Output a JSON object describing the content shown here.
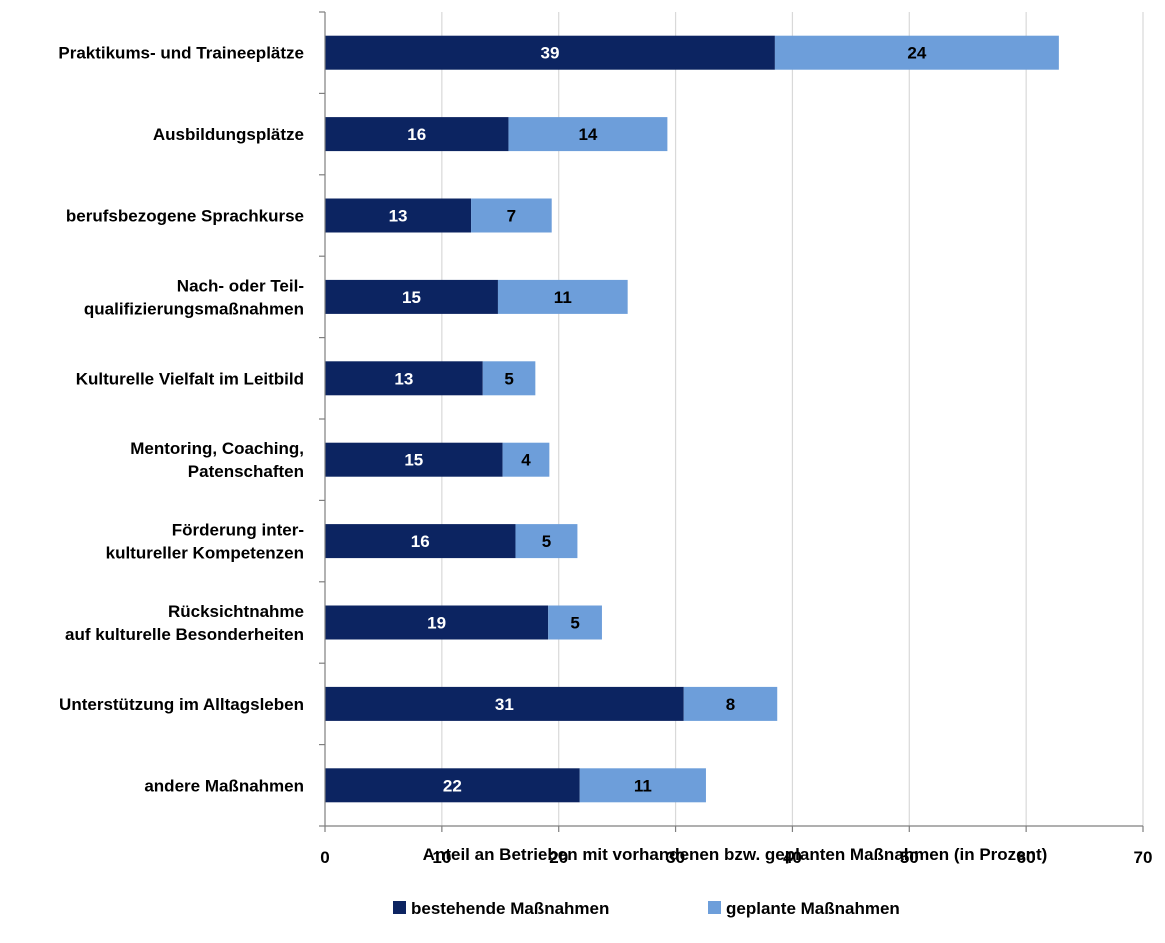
{
  "chart_data": {
    "type": "bar",
    "orientation": "horizontal",
    "stacked": true,
    "categories": [
      [
        "Praktikums- und Traineeplätze"
      ],
      [
        "Ausbildungsplätze"
      ],
      [
        "berufsbezogene Sprachkurse"
      ],
      [
        "Nach- oder Teil-",
        "qualifizierungsmaßnahmen"
      ],
      [
        "Kulturelle Vielfalt im Leitbild"
      ],
      [
        "Mentoring, Coaching,",
        "Patenschaften"
      ],
      [
        "Förderung inter-",
        "kultureller Kompetenzen"
      ],
      [
        "Rücksichtnahme",
        "auf kulturelle Besonderheiten"
      ],
      [
        "Unterstützung im Alltagsleben"
      ],
      [
        "andere Maßnahmen"
      ]
    ],
    "series": [
      {
        "name": "bestehende Maßnahmen",
        "color": "#0c2461",
        "label_color": "#ffffff",
        "values": [
          38.5,
          15.7,
          12.5,
          14.8,
          13.5,
          15.2,
          16.3,
          19.1,
          30.7,
          21.8
        ],
        "labels": [
          "39",
          "16",
          "13",
          "15",
          "13",
          "15",
          "16",
          "19",
          "31",
          "22"
        ]
      },
      {
        "name": "geplante Maßnahmen",
        "color": "#6d9eda",
        "label_color": "#000000",
        "values": [
          24.3,
          13.6,
          6.9,
          11.1,
          4.5,
          4.0,
          5.3,
          4.6,
          8.0,
          10.8
        ],
        "labels": [
          "24",
          "14",
          "7",
          "11",
          "5",
          "4",
          "5",
          "5",
          "8",
          "11"
        ]
      }
    ],
    "xlim": [
      0,
      70
    ],
    "xticks": [
      0,
      10,
      20,
      30,
      40,
      50,
      60,
      70
    ],
    "xlabel": "Anteil an Betrieben mit vorhandenen bzw. geplanten Maßnahmen (in Prozent)",
    "ylabel": "",
    "title": "",
    "grid": "vertical",
    "gridline_color": "#d9d9d9",
    "legend": "bottom"
  }
}
